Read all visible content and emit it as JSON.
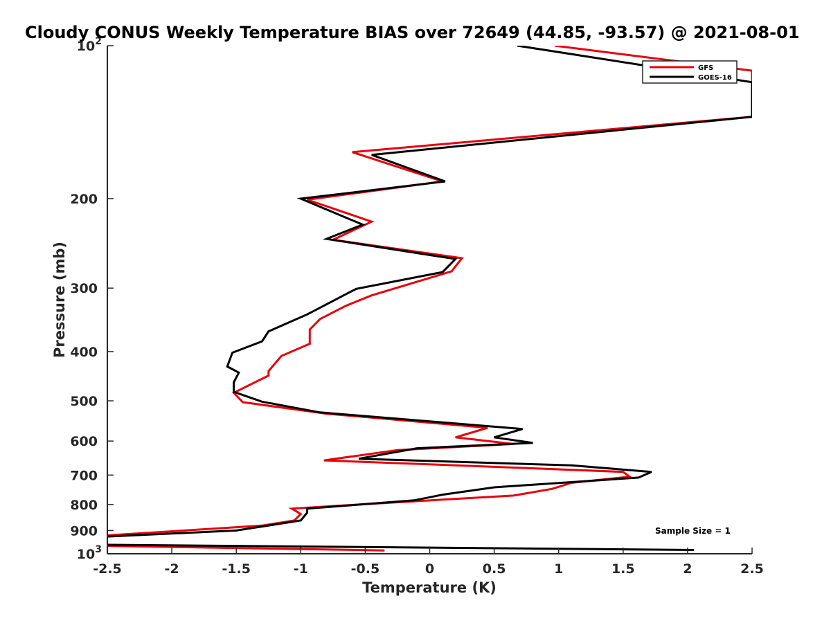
{
  "chart_data": {
    "type": "line",
    "title": "Cloudy CONUS Weekly Temperature BIAS over 72649 (44.85, -93.57) @ 2021-08-01",
    "xlabel": "Temperature (K)",
    "ylabel": "Pressure (mb)",
    "xlim": [
      -2.5,
      2.5
    ],
    "ylim": [
      100,
      1000
    ],
    "y_scale": "log",
    "y_reversed": true,
    "grid": false,
    "legend_position": "top-right",
    "x_ticks": [
      "-2.5",
      "-2",
      "-1.5",
      "-1",
      "-0.5",
      "0",
      "0.5",
      "1",
      "1.5",
      "2",
      "2.5"
    ],
    "y_ticks": [
      {
        "value": 100,
        "base": "10",
        "exp": "2"
      },
      {
        "value": 200,
        "label": "200"
      },
      {
        "value": 300,
        "label": "300"
      },
      {
        "value": 400,
        "label": "400"
      },
      {
        "value": 500,
        "label": "500"
      },
      {
        "value": 600,
        "label": "600"
      },
      {
        "value": 700,
        "label": "700"
      },
      {
        "value": 800,
        "label": "800"
      },
      {
        "value": 900,
        "label": "900"
      },
      {
        "value": 1000,
        "base": "10",
        "exp": "3"
      }
    ],
    "annotation": "Sample Size = 1",
    "series": [
      {
        "name": "GFS",
        "color": "#e8000b",
        "points": [
          [
            0.97,
            100
          ],
          [
            2.5,
            112
          ],
          [
            2.5,
            138
          ],
          [
            -0.6,
            162
          ],
          [
            0.1,
            185
          ],
          [
            -0.95,
            201
          ],
          [
            -0.45,
            222
          ],
          [
            -0.75,
            241
          ],
          [
            0.25,
            262
          ],
          [
            0.17,
            278
          ],
          [
            -0.45,
            310
          ],
          [
            -0.65,
            325
          ],
          [
            -0.85,
            345
          ],
          [
            -0.93,
            362
          ],
          [
            -0.93,
            386
          ],
          [
            -1.15,
            408
          ],
          [
            -1.25,
            437
          ],
          [
            -1.25,
            446
          ],
          [
            -1.52,
            482
          ],
          [
            -1.45,
            503
          ],
          [
            -0.8,
            530
          ],
          [
            0.45,
            565
          ],
          [
            0.2,
            590
          ],
          [
            0.65,
            608
          ],
          [
            -0.25,
            625
          ],
          [
            -0.82,
            655
          ],
          [
            0.55,
            675
          ],
          [
            1.5,
            690
          ],
          [
            1.55,
            705
          ],
          [
            1.1,
            725
          ],
          [
            0.95,
            745
          ],
          [
            0.65,
            768
          ],
          [
            -0.45,
            797
          ],
          [
            -1.07,
            815
          ],
          [
            -1,
            835
          ],
          [
            -1.05,
            860
          ],
          [
            -1.3,
            880
          ],
          [
            -2.5,
            920
          ]
        ],
        "segment2": [
          [
            -2.5,
            965
          ],
          [
            -0.35,
            985
          ]
        ]
      },
      {
        "name": "GOES-16",
        "color": "#000000",
        "points": [
          [
            0.68,
            100
          ],
          [
            2.5,
            118
          ],
          [
            2.5,
            138
          ],
          [
            -0.45,
            164
          ],
          [
            0.12,
            185
          ],
          [
            -1,
            200
          ],
          [
            -0.52,
            225
          ],
          [
            -0.8,
            240
          ],
          [
            0.2,
            263
          ],
          [
            0.1,
            279
          ],
          [
            -0.57,
            301
          ],
          [
            -0.95,
            338
          ],
          [
            -1.25,
            365
          ],
          [
            -1.3,
            382
          ],
          [
            -1.53,
            402
          ],
          [
            -1.57,
            428
          ],
          [
            -1.48,
            440
          ],
          [
            -1.52,
            460
          ],
          [
            -1.52,
            480
          ],
          [
            -1.3,
            502
          ],
          [
            -0.85,
            527
          ],
          [
            0.72,
            568
          ],
          [
            0.5,
            590
          ],
          [
            0.8,
            605
          ],
          [
            -0.1,
            620
          ],
          [
            -0.55,
            650
          ],
          [
            1.1,
            670
          ],
          [
            1.72,
            690
          ],
          [
            1.62,
            708
          ],
          [
            0.5,
            740
          ],
          [
            0.1,
            765
          ],
          [
            -0.12,
            785
          ],
          [
            -0.95,
            815
          ],
          [
            -0.95,
            830
          ],
          [
            -1,
            860
          ],
          [
            -1.5,
            900
          ],
          [
            -2.5,
            925
          ]
        ],
        "segment2": [
          [
            -2.5,
            960
          ],
          [
            2.05,
            983
          ]
        ]
      }
    ]
  }
}
